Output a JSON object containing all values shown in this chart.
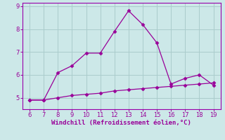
{
  "x": [
    6,
    7,
    8,
    9,
    10,
    11,
    12,
    13,
    14,
    15,
    16,
    17,
    18,
    19
  ],
  "y_upper": [
    4.9,
    4.9,
    6.1,
    6.4,
    6.95,
    6.95,
    7.9,
    8.8,
    8.2,
    7.4,
    5.6,
    5.85,
    6.0,
    5.55
  ],
  "y_lower": [
    4.9,
    4.9,
    5.0,
    5.1,
    5.15,
    5.2,
    5.3,
    5.35,
    5.4,
    5.45,
    5.5,
    5.55,
    5.6,
    5.65
  ],
  "line_color": "#990099",
  "bg_color": "#cce8e8",
  "grid_color": "#aacccc",
  "spine_color": "#9900aa",
  "xlabel": "Windchill (Refroidissement éolien,°C)",
  "xlabel_color": "#990099",
  "xlim": [
    5.5,
    19.5
  ],
  "ylim": [
    4.5,
    9.15
  ],
  "xticks": [
    6,
    7,
    8,
    9,
    10,
    11,
    12,
    13,
    14,
    15,
    16,
    17,
    18,
    19
  ],
  "yticks": [
    5,
    6,
    7,
    8,
    9
  ],
  "tick_color": "#990099",
  "marker": "D",
  "markersize": 2.5,
  "linewidth": 0.9
}
